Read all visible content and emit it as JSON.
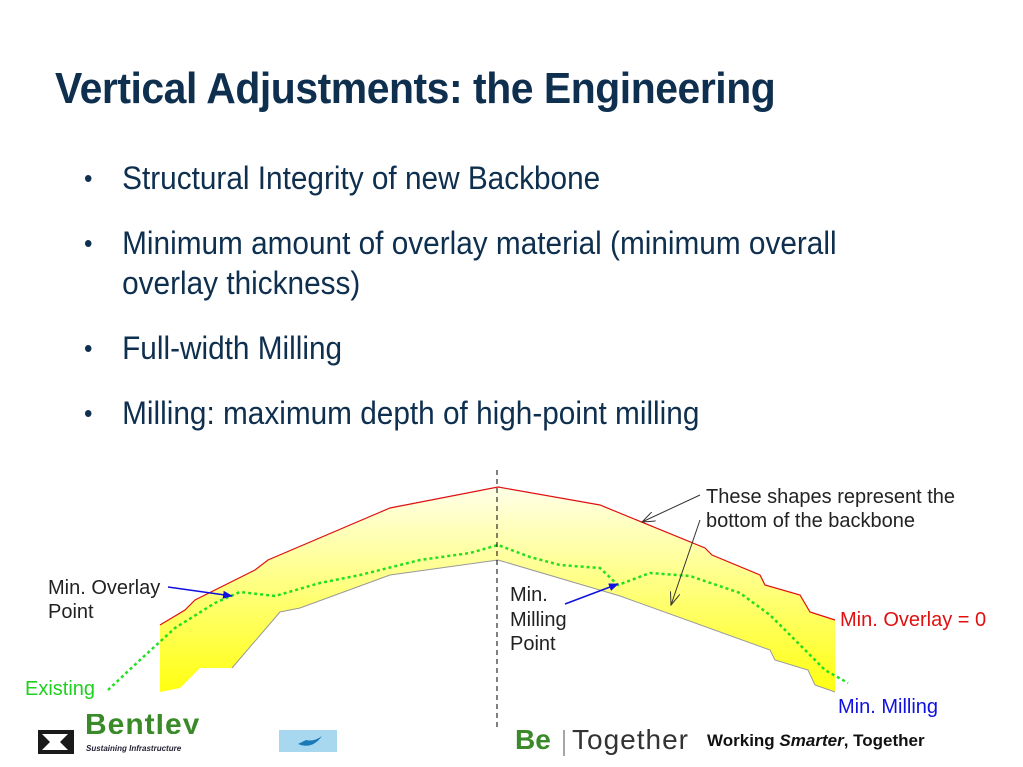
{
  "slide": {
    "title": "Vertical Adjustments: the Engineering",
    "bullet_symbol": "•",
    "bullets": [
      "Structural Integrity of new Backbone",
      "Minimum amount of overlay material (minimum overall overlay thickness)",
      "Full-width Milling",
      "Milling: maximum depth of high-point milling"
    ]
  },
  "diagram": {
    "labels": {
      "min_overlay_point_1": "Min. Overlay",
      "min_overlay_point_2": "Point",
      "existing": "Existing",
      "min_milling_point_1": "Min.",
      "min_milling_point_2": "Milling",
      "min_milling_point_3": "Point",
      "shapes_note_1": "These shapes represent the",
      "shapes_note_2": "bottom of the backbone",
      "min_overlay_zero": "Min. Overlay = 0",
      "min_milling": "Min. Milling"
    },
    "colors": {
      "top_profile": "#e01010",
      "band_fill_top": "#ffffe0",
      "band_fill_bottom": "#ffff20",
      "existing_line": "#20e020",
      "arrow_blue": "#1010e0",
      "centerline": "#000000",
      "label_red": "#e01010",
      "label_green": "#20d020",
      "label_blue": "#1010e0"
    }
  },
  "footer": {
    "bentley": "Bentley",
    "bentley_tagline_1": "Sustaining",
    "bentley_tagline_2": "Infrastructure",
    "be": "Be",
    "together": "Together",
    "slogan_1": "Working ",
    "slogan_2": "Smarter",
    "slogan_3": ", Together"
  }
}
